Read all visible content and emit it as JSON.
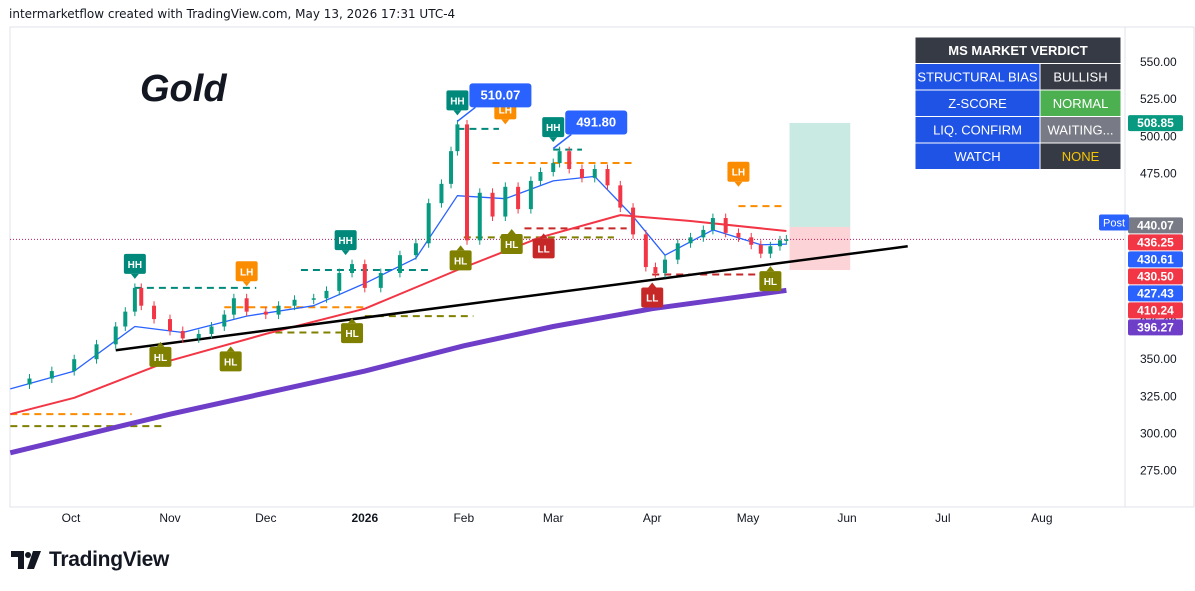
{
  "header": {
    "text": "intermarketflow created with TradingView.com, May 13, 2026 17:31 UTC-4"
  },
  "brand": {
    "name": "TradingView"
  },
  "colors": {
    "up": "#089981",
    "down": "#f23645",
    "ema_fast": "#2962ff",
    "ema_slow": "#f23645",
    "ema_long": "#6f3ec9",
    "trend": "#000000",
    "hh": "#00897b",
    "lh": "#fb8c00",
    "hl": "#808000",
    "ll": "#c62828",
    "table_header": "#363a45",
    "table_cell": "#1e53e5"
  },
  "table": {
    "title": "MS MARKET VERDICT",
    "rows": [
      {
        "label": "STRUCTURAL BIAS",
        "value": "BULLISH",
        "value_color": "#363a45"
      },
      {
        "label": "Z-SCORE",
        "value": "NORMAL",
        "value_color": "#4caf50"
      },
      {
        "label": "LIQ. CONFIRM",
        "value": "WAITING...",
        "value_color": "#787b86"
      },
      {
        "label": "WATCH",
        "value": "NONE",
        "value_color": "#363a45",
        "value_text_color": "#f5c400"
      }
    ]
  },
  "chart_data": {
    "type": "candlestick",
    "title": "Gold",
    "y_axis": {
      "ticks": [
        550,
        525,
        500,
        475,
        450,
        425,
        400,
        375,
        350,
        325,
        300,
        275
      ],
      "tick_labels": [
        "550.00",
        "525.00",
        "500.00",
        "475.00",
        "",
        "",
        "",
        "375.00",
        "350.00",
        "325.00",
        "300.00",
        "275.00"
      ]
    },
    "x_axis": {
      "labels": [
        {
          "label": "Oct",
          "date": "2025-10-01"
        },
        {
          "label": "Nov",
          "date": "2025-11-01"
        },
        {
          "label": "Dec",
          "date": "2025-12-01"
        },
        {
          "label": "2026",
          "date": "2026-01-01"
        },
        {
          "label": "Feb",
          "date": "2026-02-01"
        },
        {
          "label": "Mar",
          "date": "2026-03-01"
        },
        {
          "label": "Apr",
          "date": "2026-04-01"
        },
        {
          "label": "May",
          "date": "2026-05-01"
        },
        {
          "label": "Jun",
          "date": "2026-06-01"
        },
        {
          "label": "Jul",
          "date": "2026-07-01"
        },
        {
          "label": "Aug",
          "date": "2026-08-01"
        }
      ]
    },
    "close_series": [
      {
        "date": "2025-09-12",
        "close": 333
      },
      {
        "date": "2025-09-18",
        "close": 337
      },
      {
        "date": "2025-09-25",
        "close": 342
      },
      {
        "date": "2025-10-02",
        "close": 350
      },
      {
        "date": "2025-10-09",
        "close": 360
      },
      {
        "date": "2025-10-15",
        "close": 372
      },
      {
        "date": "2025-10-18",
        "close": 382
      },
      {
        "date": "2025-10-21",
        "close": 398
      },
      {
        "date": "2025-10-23",
        "close": 386
      },
      {
        "date": "2025-10-27",
        "close": 377
      },
      {
        "date": "2025-11-01",
        "close": 369
      },
      {
        "date": "2025-11-05",
        "close": 364
      },
      {
        "date": "2025-11-10",
        "close": 367
      },
      {
        "date": "2025-11-14",
        "close": 372
      },
      {
        "date": "2025-11-18",
        "close": 380
      },
      {
        "date": "2025-11-21",
        "close": 391
      },
      {
        "date": "2025-11-25",
        "close": 382
      },
      {
        "date": "2025-12-01",
        "close": 380
      },
      {
        "date": "2025-12-05",
        "close": 386
      },
      {
        "date": "2025-12-10",
        "close": 390
      },
      {
        "date": "2025-12-16",
        "close": 391
      },
      {
        "date": "2025-12-20",
        "close": 396
      },
      {
        "date": "2025-12-24",
        "close": 408
      },
      {
        "date": "2025-12-28",
        "close": 414
      },
      {
        "date": "2026-01-01",
        "close": 398
      },
      {
        "date": "2026-01-06",
        "close": 408
      },
      {
        "date": "2026-01-12",
        "close": 420
      },
      {
        "date": "2026-01-17",
        "close": 428
      },
      {
        "date": "2026-01-21",
        "close": 455
      },
      {
        "date": "2026-01-25",
        "close": 468
      },
      {
        "date": "2026-01-28",
        "close": 490
      },
      {
        "date": "2026-01-30",
        "close": 508
      },
      {
        "date": "2026-02-02",
        "close": 430
      },
      {
        "date": "2026-02-06",
        "close": 462
      },
      {
        "date": "2026-02-10",
        "close": 446
      },
      {
        "date": "2026-02-14",
        "close": 466
      },
      {
        "date": "2026-02-18",
        "close": 451
      },
      {
        "date": "2026-02-22",
        "close": 470
      },
      {
        "date": "2026-02-25",
        "close": 476
      },
      {
        "date": "2026-03-01",
        "close": 482
      },
      {
        "date": "2026-03-03",
        "close": 490
      },
      {
        "date": "2026-03-06",
        "close": 478
      },
      {
        "date": "2026-03-10",
        "close": 472
      },
      {
        "date": "2026-03-14",
        "close": 478
      },
      {
        "date": "2026-03-18",
        "close": 467
      },
      {
        "date": "2026-03-22",
        "close": 452
      },
      {
        "date": "2026-03-26",
        "close": 434
      },
      {
        "date": "2026-03-30",
        "close": 412
      },
      {
        "date": "2026-04-02",
        "close": 408
      },
      {
        "date": "2026-04-05",
        "close": 417
      },
      {
        "date": "2026-04-09",
        "close": 428
      },
      {
        "date": "2026-04-13",
        "close": 432
      },
      {
        "date": "2026-04-17",
        "close": 437
      },
      {
        "date": "2026-04-20",
        "close": 445
      },
      {
        "date": "2026-04-24",
        "close": 435
      },
      {
        "date": "2026-04-28",
        "close": 432
      },
      {
        "date": "2026-05-02",
        "close": 427
      },
      {
        "date": "2026-05-05",
        "close": 421
      },
      {
        "date": "2026-05-08",
        "close": 426
      },
      {
        "date": "2026-05-11",
        "close": 430
      },
      {
        "date": "2026-05-13",
        "close": 430.61
      }
    ],
    "moving_averages": [
      {
        "name": "ema_fast",
        "color": "#2962ff",
        "points": [
          {
            "date": "2025-09-12",
            "value": 330
          },
          {
            "date": "2025-10-02",
            "value": 342
          },
          {
            "date": "2025-10-21",
            "value": 372
          },
          {
            "date": "2025-11-05",
            "value": 368
          },
          {
            "date": "2025-11-25",
            "value": 379
          },
          {
            "date": "2025-12-16",
            "value": 386
          },
          {
            "date": "2026-01-01",
            "value": 401
          },
          {
            "date": "2026-01-17",
            "value": 418
          },
          {
            "date": "2026-01-30",
            "value": 460
          },
          {
            "date": "2026-02-14",
            "value": 458
          },
          {
            "date": "2026-03-01",
            "value": 470
          },
          {
            "date": "2026-03-14",
            "value": 473
          },
          {
            "date": "2026-03-26",
            "value": 446
          },
          {
            "date": "2026-04-05",
            "value": 420
          },
          {
            "date": "2026-04-20",
            "value": 437
          },
          {
            "date": "2026-05-05",
            "value": 427
          },
          {
            "date": "2026-05-13",
            "value": 427.43
          }
        ]
      },
      {
        "name": "ema_slow",
        "color": "#f23645",
        "points": [
          {
            "date": "2025-09-12",
            "value": 313
          },
          {
            "date": "2025-10-02",
            "value": 324
          },
          {
            "date": "2025-11-01",
            "value": 349
          },
          {
            "date": "2025-12-01",
            "value": 367
          },
          {
            "date": "2026-01-01",
            "value": 384
          },
          {
            "date": "2026-01-30",
            "value": 410
          },
          {
            "date": "2026-02-25",
            "value": 432
          },
          {
            "date": "2026-03-22",
            "value": 447
          },
          {
            "date": "2026-04-13",
            "value": 443
          },
          {
            "date": "2026-05-13",
            "value": 436.25
          }
        ]
      },
      {
        "name": "ema_long",
        "color": "#6f3ec9",
        "points": [
          {
            "date": "2025-09-12",
            "value": 287
          },
          {
            "date": "2025-11-01",
            "value": 313
          },
          {
            "date": "2026-01-01",
            "value": 342
          },
          {
            "date": "2026-02-01",
            "value": 359
          },
          {
            "date": "2026-03-01",
            "value": 372
          },
          {
            "date": "2026-04-01",
            "value": 384
          },
          {
            "date": "2026-05-13",
            "value": 396.27
          }
        ]
      }
    ],
    "trendline": [
      {
        "date": "2025-10-15",
        "value": 356
      },
      {
        "date": "2026-06-20",
        "value": 426
      }
    ],
    "structure_labels": [
      {
        "type": "HH",
        "date": "2025-10-21",
        "value": 398
      },
      {
        "type": "HL",
        "date": "2025-10-29",
        "value": 365
      },
      {
        "type": "LH",
        "date": "2025-11-25",
        "value": 393
      },
      {
        "type": "HL",
        "date": "2025-11-20",
        "value": 362
      },
      {
        "type": "HH",
        "date": "2025-12-26",
        "value": 414
      },
      {
        "type": "HL",
        "date": "2025-12-28",
        "value": 381
      },
      {
        "type": "HH",
        "date": "2026-01-30",
        "value": 508
      },
      {
        "type": "HL",
        "date": "2026-01-31",
        "value": 430
      },
      {
        "type": "LH",
        "date": "2026-02-14",
        "value": 502
      },
      {
        "type": "HL",
        "date": "2026-02-16",
        "value": 441
      },
      {
        "type": "LL",
        "date": "2026-02-26",
        "value": 438
      },
      {
        "type": "HH",
        "date": "2026-03-01",
        "value": 490
      },
      {
        "type": "LL",
        "date": "2026-04-01",
        "value": 405
      },
      {
        "type": "LH",
        "date": "2026-04-28",
        "value": 460
      },
      {
        "type": "HL",
        "date": "2026-05-08",
        "value": 416
      }
    ],
    "price_callouts": [
      {
        "date": "2026-01-30",
        "value": 510.07,
        "label": "510.07"
      },
      {
        "date": "2026-03-01",
        "value": 491.8,
        "label": "491.80"
      }
    ],
    "zones": [
      {
        "kind": "target",
        "from_date": "2026-05-14",
        "to_date": "2026-06-02",
        "low": 439,
        "high": 509
      },
      {
        "kind": "stop",
        "from_date": "2026-05-14",
        "to_date": "2026-06-02",
        "low": 410,
        "high": 439
      }
    ],
    "price_tags": [
      {
        "value": 508.85,
        "label": "508.85",
        "color": "#089981"
      },
      {
        "value": 440.07,
        "label": "440.07",
        "color": "#787b86"
      },
      {
        "value": 436.25,
        "label": "436.25",
        "color": "#f23645"
      },
      {
        "value": 430.61,
        "label": "430.61",
        "color": "#2962ff"
      },
      {
        "value": 430.5,
        "label": "430.50",
        "color": "#f23645"
      },
      {
        "value": 427.43,
        "label": "427.43",
        "color": "#2962ff"
      },
      {
        "value": 410.24,
        "label": "410.24",
        "color": "#f23645"
      },
      {
        "value": 396.27,
        "label": "396.27",
        "color": "#6f3ec9"
      }
    ],
    "post_label": "Post",
    "grid": false
  }
}
